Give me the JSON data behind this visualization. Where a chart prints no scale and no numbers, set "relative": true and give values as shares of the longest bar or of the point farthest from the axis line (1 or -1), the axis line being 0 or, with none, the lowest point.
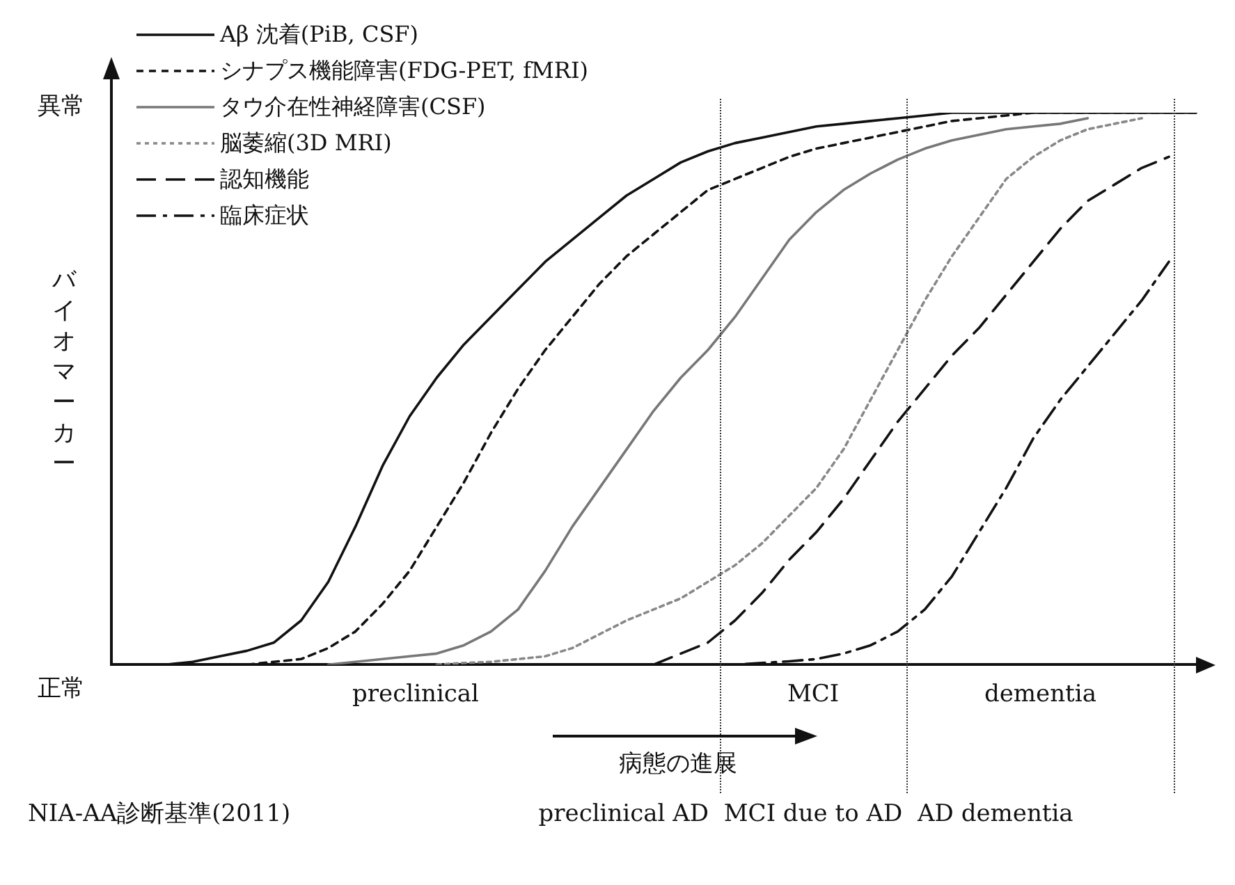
{
  "chart_data": {
    "type": "line",
    "relative": true,
    "ylabel": "バイオマーカー",
    "legend": "top left",
    "marker": "none",
    "categories": [
      null,
      null,
      null,
      null,
      null,
      null,
      null,
      null,
      null,
      null,
      null,
      null,
      null,
      null,
      null,
      null,
      null,
      null,
      null,
      null,
      null,
      null,
      null,
      null,
      null,
      null,
      null,
      null,
      null,
      null,
      null,
      null,
      null,
      null,
      null,
      null,
      null,
      null,
      null,
      null,
      null
    ],
    "series": [
      {
        "name": "Aβ 沈着(PiB, CSF)",
        "color": "#111111",
        "line_style": "solid",
        "values": [
          null,
          null,
          0,
          0.005,
          0.015,
          0.025,
          0.04,
          0.08,
          0.15,
          0.25,
          0.36,
          0.45,
          0.52,
          0.58,
          0.63,
          0.68,
          0.73,
          0.77,
          0.81,
          0.85,
          0.88,
          0.91,
          0.93,
          0.945,
          0.955,
          0.965,
          0.975,
          0.98,
          0.985,
          0.99,
          0.995,
          1,
          1,
          1,
          1,
          1,
          1,
          1,
          1,
          1,
          1
        ]
      },
      {
        "name": "シナプス機能障害(FDG-PET, fMRI)",
        "color": "#111111",
        "line_style": "dashed",
        "values": [
          null,
          null,
          null,
          null,
          null,
          0,
          0.005,
          0.01,
          0.03,
          0.06,
          0.11,
          0.17,
          0.25,
          0.33,
          0.42,
          0.5,
          0.57,
          0.63,
          0.69,
          0.74,
          0.78,
          0.82,
          0.86,
          0.88,
          0.9,
          0.92,
          0.935,
          0.945,
          0.955,
          0.965,
          0.975,
          0.985,
          0.99,
          0.995,
          1,
          1,
          1,
          1,
          1,
          1,
          1
        ]
      },
      {
        "name": "タウ介在性神経障害(CSF)",
        "color": "#777777",
        "line_style": "solid",
        "values": [
          null,
          null,
          null,
          null,
          null,
          null,
          null,
          null,
          0,
          0.005,
          0.01,
          0.015,
          0.02,
          0.035,
          0.06,
          0.1,
          0.17,
          0.25,
          0.32,
          0.39,
          0.46,
          0.52,
          0.57,
          0.63,
          0.7,
          0.77,
          0.82,
          0.86,
          0.89,
          0.915,
          0.935,
          0.95,
          0.96,
          0.97,
          0.975,
          0.98,
          0.99,
          null,
          null,
          null,
          null
        ]
      },
      {
        "name": "脳萎縮(3D MRI)",
        "color": "#888888",
        "line_style": "dotted",
        "values": [
          null,
          null,
          null,
          null,
          null,
          null,
          null,
          null,
          null,
          null,
          null,
          null,
          0,
          0.003,
          0.005,
          0.01,
          0.015,
          0.03,
          0.055,
          0.08,
          0.1,
          0.12,
          0.15,
          0.18,
          0.22,
          0.27,
          0.32,
          0.39,
          0.48,
          0.57,
          0.66,
          0.74,
          0.81,
          0.88,
          0.92,
          0.95,
          0.97,
          0.98,
          0.99,
          null,
          null
        ]
      },
      {
        "name": "認知機能",
        "color": "#111111",
        "line_style": "longdash",
        "values": [
          null,
          null,
          null,
          null,
          null,
          null,
          null,
          null,
          null,
          null,
          null,
          null,
          null,
          null,
          null,
          null,
          null,
          null,
          null,
          null,
          0,
          0.02,
          0.04,
          0.08,
          0.13,
          0.19,
          0.24,
          0.3,
          0.37,
          0.44,
          0.5,
          0.56,
          0.61,
          0.67,
          0.73,
          0.79,
          0.84,
          0.87,
          0.9,
          0.92,
          null
        ]
      },
      {
        "name": "臨床症状",
        "color": "#111111",
        "line_style": "dashdot",
        "values": [
          null,
          null,
          null,
          null,
          null,
          null,
          null,
          null,
          null,
          null,
          null,
          null,
          null,
          null,
          null,
          null,
          null,
          null,
          null,
          null,
          null,
          null,
          0,
          0,
          0.003,
          0.006,
          0.01,
          0.02,
          0.035,
          0.06,
          0.1,
          0.16,
          0.24,
          0.32,
          0.41,
          0.48,
          0.54,
          0.6,
          0.66,
          0.73,
          null
        ]
      }
    ],
    "annotations": [
      "異常",
      "正常",
      "preclinical",
      "MCI",
      "dementia",
      "病態の進展",
      "NIA-AA診断基準(2011)",
      "preclinical AD",
      "MCI due to AD",
      "AD dementia"
    ]
  }
}
